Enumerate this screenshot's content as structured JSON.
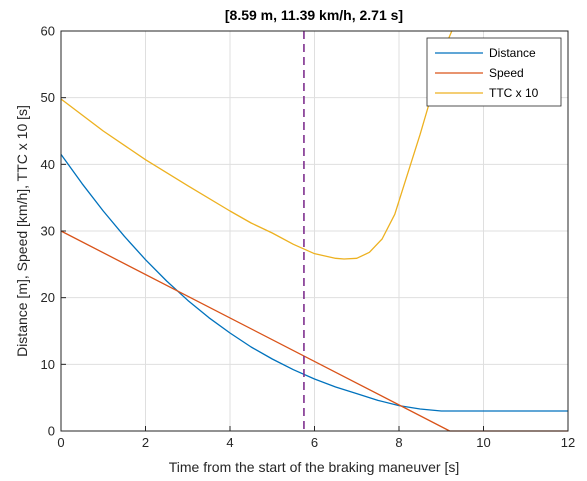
{
  "chart_data": {
    "type": "line",
    "title": "[8.59 m, 11.39 km/h, 2.71 s]",
    "xlabel": "Time from the start of the braking maneuver [s]",
    "ylabel": "Distance [m], Speed [km/h], TTC x 10 [s]",
    "xlim": [
      0,
      12
    ],
    "ylim": [
      0,
      60
    ],
    "xticks": [
      "0",
      "2",
      "4",
      "6",
      "8",
      "10",
      "12"
    ],
    "yticks": [
      "0",
      "10",
      "20",
      "30",
      "40",
      "50",
      "60"
    ],
    "grid": true,
    "legend_position": "top-right",
    "marker_line": {
      "x": 5.75,
      "color": "#7e2f8e",
      "style": "dashed"
    },
    "series": [
      {
        "name": "Distance",
        "color": "#0072bd",
        "x": [
          0,
          0.5,
          1,
          1.5,
          2,
          2.5,
          3,
          3.5,
          4,
          4.5,
          5,
          5.5,
          6,
          6.5,
          7,
          7.5,
          8,
          8.5,
          9,
          9.5,
          10,
          10.5,
          11,
          11.5,
          12
        ],
        "y": [
          41.5,
          37.1,
          33.0,
          29.2,
          25.7,
          22.5,
          19.6,
          17.0,
          14.7,
          12.6,
          10.8,
          9.2,
          7.8,
          6.6,
          5.6,
          4.6,
          3.8,
          3.3,
          3.0,
          3.0,
          3.0,
          3.0,
          3.0,
          3.0,
          3.0
        ]
      },
      {
        "name": "Speed",
        "color": "#d95319",
        "x": [
          0,
          9.2,
          12
        ],
        "y": [
          30,
          0,
          0
        ]
      },
      {
        "name": "TTC x 10",
        "color": "#edb120",
        "x": [
          0,
          1,
          2,
          3,
          4,
          4.5,
          5,
          5.5,
          6,
          6.5,
          6.7,
          7,
          7.3,
          7.6,
          7.9,
          8.2,
          8.5,
          8.8,
          9.0,
          9.15,
          9.25
        ],
        "y": [
          49.8,
          45.0,
          40.7,
          36.8,
          33.0,
          31.2,
          29.7,
          28.0,
          26.6,
          25.9,
          25.8,
          25.9,
          26.8,
          28.8,
          32.5,
          38.5,
          44.5,
          51.0,
          55.5,
          58.5,
          60.0
        ]
      }
    ]
  }
}
